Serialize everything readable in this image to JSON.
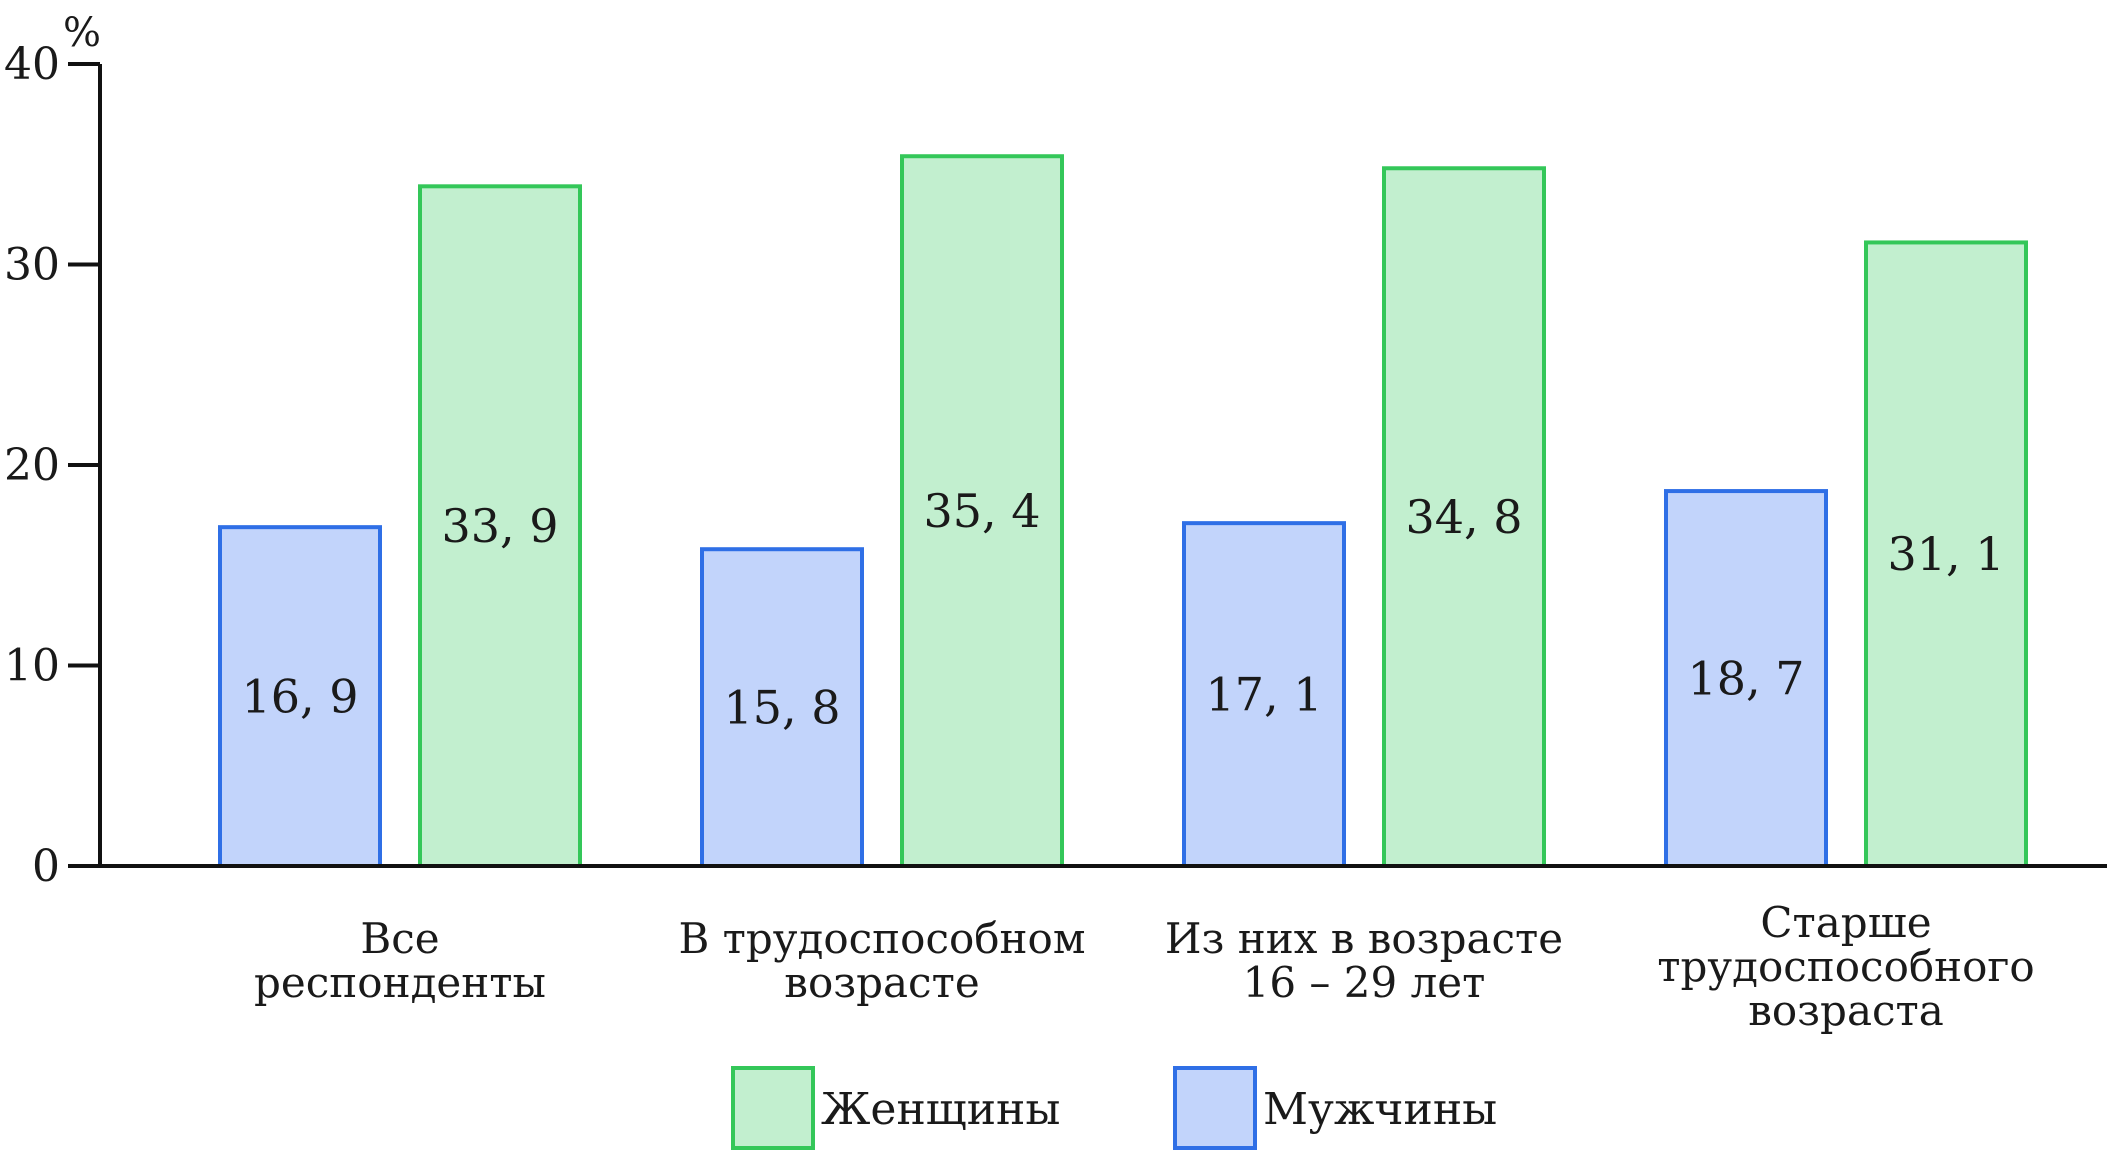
{
  "chart_data": {
    "type": "bar",
    "ylabel": "%",
    "ylim": [
      0,
      40
    ],
    "yticks": [
      0,
      10,
      20,
      30,
      40
    ],
    "grid": false,
    "legend_position": "bottom",
    "categories": [
      [
        "Все",
        "респонденты"
      ],
      [
        "В трудоспособном",
        "возрасте"
      ],
      [
        "Из них в возрасте",
        "16 – 29 лет"
      ],
      [
        "Старше",
        "трудоспособного",
        "возраста"
      ]
    ],
    "series": [
      {
        "name": "Мужчины",
        "values": [
          16.9,
          15.8,
          17.1,
          18.7
        ],
        "labels": [
          "16, 9",
          "15, 8",
          "17, 1",
          "18, 7"
        ],
        "fill": "#c2d4fb",
        "stroke": "#2f6fe6"
      },
      {
        "name": "Женщины",
        "values": [
          33.9,
          35.4,
          34.8,
          31.1
        ],
        "labels": [
          "33, 9",
          "35, 4",
          "34, 8",
          "31, 1"
        ],
        "fill": "#c2efcf",
        "stroke": "#34c759"
      }
    ],
    "legend_order": [
      "Женщины",
      "Мужчины"
    ]
  }
}
